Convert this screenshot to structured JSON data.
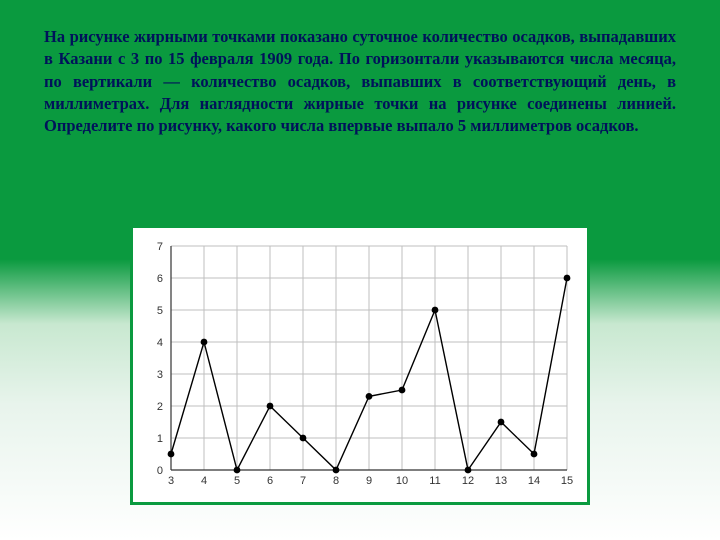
{
  "problem_text": "На рисунке жирными точками показано суточное количество осадков, выпадавших в Казани с 3 по 15 февраля 1909 года. По горизонтали указываются числа месяца, по вертикали — количество осадков, выпавших в соответствующий день, в миллиметрах. Для наглядности жирные точки на рисунке соединены линией. Определите по рисунку, какого числа впервые выпало 5 миллиметров осадков.",
  "chart": {
    "type": "line",
    "x_values": [
      3,
      4,
      5,
      6,
      7,
      8,
      9,
      10,
      11,
      12,
      13,
      14,
      15
    ],
    "y_values": [
      0.5,
      4,
      0,
      2,
      1,
      0,
      2.3,
      2.5,
      5,
      0,
      1.5,
      0.5,
      6
    ],
    "xlim": [
      3,
      15
    ],
    "ylim": [
      0,
      7
    ],
    "xtick_step": 1,
    "ytick_step": 1,
    "grid_color": "#bfbfbf",
    "axis_color": "#333333",
    "line_color": "#000000",
    "point_color": "#000000",
    "point_radius": 3.4,
    "line_width": 1.4,
    "background_color": "#ffffff",
    "frame_border_color": "#0a9a3f",
    "tick_fontsize": 11,
    "tick_font": "Arial"
  },
  "colors": {
    "page_green": "#0a9a3f",
    "text_color": "#00125a"
  }
}
